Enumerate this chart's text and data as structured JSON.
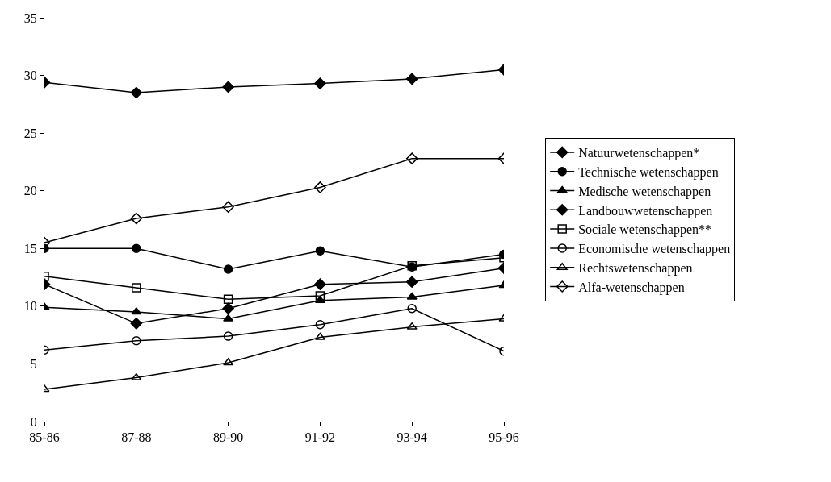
{
  "chart_data": {
    "type": "line",
    "categories": [
      "85-86",
      "87-88",
      "89-90",
      "91-92",
      "93-94",
      "95-96"
    ],
    "ylim": [
      0,
      35
    ],
    "yticks": [
      0,
      5,
      10,
      15,
      20,
      25,
      30,
      35
    ],
    "grid": false,
    "legend": "right",
    "line_style": "solid",
    "series": [
      {
        "name": "Natuurwetenschappen*",
        "color": "#000000",
        "marker": "diamond",
        "values": [
          29.4,
          28.5,
          29.0,
          29.3,
          29.7,
          30.5
        ]
      },
      {
        "name": "Technische wetenschappen",
        "color": "#000000",
        "marker": "circle",
        "values": [
          15.0,
          15.0,
          13.2,
          14.8,
          13.4,
          14.5
        ]
      },
      {
        "name": "Medische wetenschappen",
        "color": "#000000",
        "marker": "triangle",
        "values": [
          9.9,
          9.5,
          8.9,
          10.5,
          10.8,
          11.8
        ]
      },
      {
        "name": "Landbouwwetenschappen",
        "color": "#000000",
        "marker": "diamond",
        "values": [
          11.9,
          8.5,
          9.8,
          11.9,
          12.1,
          13.3
        ]
      },
      {
        "name": "Sociale wetenschappen**",
        "color": "#000000",
        "marker": "square-open",
        "values": [
          12.6,
          11.6,
          10.6,
          10.9,
          13.5,
          14.2
        ]
      },
      {
        "name": "Economische wetenschappen",
        "color": "#000000",
        "marker": "circle-open",
        "values": [
          6.2,
          7.0,
          7.4,
          8.4,
          9.8,
          6.1
        ]
      },
      {
        "name": "Rechtswetenschappen",
        "color": "#000000",
        "marker": "triangle-open",
        "values": [
          2.8,
          3.8,
          5.1,
          7.3,
          8.2,
          8.9
        ]
      },
      {
        "name": "Alfa-wetenschappen",
        "color": "#000000",
        "marker": "diamond-open",
        "values": [
          15.5,
          17.6,
          18.6,
          20.3,
          22.8,
          22.8
        ]
      }
    ]
  }
}
